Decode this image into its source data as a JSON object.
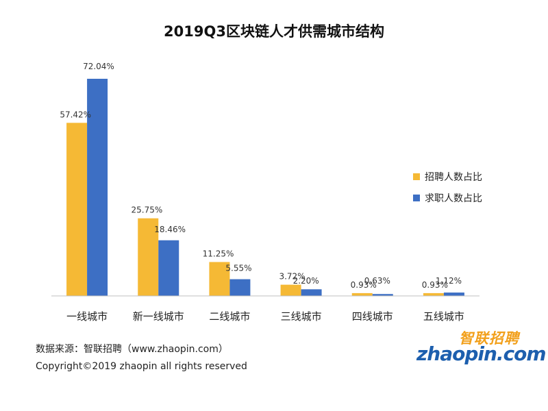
{
  "title": "2019Q3区块链人才供需城市结构",
  "chart_data": {
    "type": "bar",
    "categories": [
      "一线城市",
      "新一线城市",
      "二线城市",
      "三线城市",
      "四线城市",
      "五线城市"
    ],
    "series": [
      {
        "name": "招聘人数占比",
        "values": [
          57.42,
          25.75,
          11.25,
          3.72,
          0.93,
          0.93
        ],
        "labels": [
          "57.42%",
          "25.75%",
          "11.25%",
          "3.72%",
          "0.93%",
          "0.93%"
        ],
        "color": "#f5b935"
      },
      {
        "name": "求职人数占比",
        "values": [
          72.04,
          18.46,
          5.55,
          2.2,
          0.63,
          1.12
        ],
        "labels": [
          "72.04%",
          "18.46%",
          "5.55%",
          "2.20%",
          "0.63%",
          "1.12%"
        ],
        "color": "#3d6fc4"
      }
    ],
    "ylim": [
      0,
      72.04
    ],
    "grid": false,
    "legend_position": "right"
  },
  "footer": {
    "source": "数据来源：智联招聘（www.zhaopin.com）",
    "copyright": "Copyright©2019 zhaopin all rights reserved"
  },
  "logo": {
    "cn": "智联招聘",
    "en": "zhaopin.com",
    "cn_color": "#f2a01b",
    "en_color": "#1d5fae"
  }
}
